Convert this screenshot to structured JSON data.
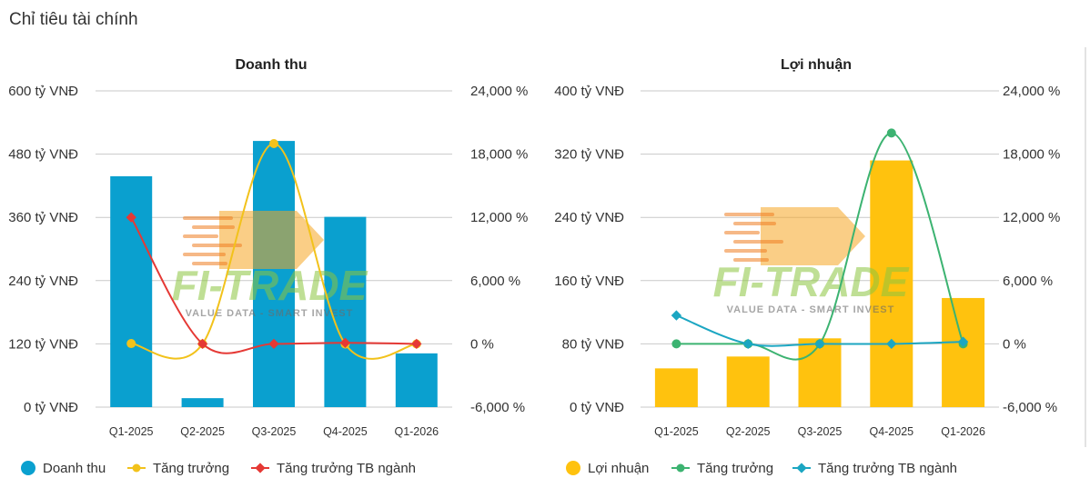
{
  "page": {
    "title": "Chỉ tiêu tài chính"
  },
  "watermark": {
    "text": "FI-TRADE",
    "tagline": "VALUE DATA - SMART INVEST"
  },
  "chart_data": [
    {
      "type": "bar",
      "title": "Doanh thu",
      "categories": [
        "Q1-2025",
        "Q2-2025",
        "Q3-2025",
        "Q4-2025",
        "Q1-2026"
      ],
      "y_left": {
        "ticks": [
          "0 tỷ VNĐ",
          "120 tỷ VNĐ",
          "240 tỷ VNĐ",
          "360 tỷ VNĐ",
          "480 tỷ VNĐ",
          "600 tỷ VNĐ"
        ],
        "min": 0,
        "max": 600
      },
      "y_right": {
        "ticks": [
          "-6,000 %",
          "0 %",
          "6,000 %",
          "12,000 %",
          "18,000 %",
          "24,000 %"
        ],
        "min": -6000,
        "max": 24000
      },
      "grid": true,
      "legend_position": "bottom-left",
      "series": [
        {
          "name": "Doanh thu",
          "kind": "bar",
          "axis": "left",
          "color": "#0aa0cf",
          "values": [
            438,
            17,
            505,
            361,
            102
          ]
        },
        {
          "name": "Tăng trưởng",
          "kind": "line",
          "axis": "right",
          "color": "#f2c21b",
          "values": [
            30,
            0,
            19000,
            -15,
            -10
          ]
        },
        {
          "name": "Tăng trưởng TB ngành",
          "kind": "line",
          "axis": "right",
          "color": "#e53935",
          "values": [
            12000,
            0,
            0,
            100,
            0
          ]
        }
      ]
    },
    {
      "type": "bar",
      "title": "Lợi nhuận",
      "categories": [
        "Q1-2025",
        "Q2-2025",
        "Q3-2025",
        "Q4-2025",
        "Q1-2026"
      ],
      "y_left": {
        "ticks": [
          "0 tỷ VNĐ",
          "80 tỷ VNĐ",
          "160 tỷ VNĐ",
          "240 tỷ VNĐ",
          "320 tỷ VNĐ",
          "400 tỷ VNĐ"
        ],
        "min": 0,
        "max": 400
      },
      "y_right": {
        "ticks": [
          "-6,000 %",
          "0 %",
          "6,000 %",
          "12,000 %",
          "18,000 %",
          "24,000 %"
        ],
        "min": -6000,
        "max": 24000
      },
      "grid": true,
      "legend_position": "bottom-left",
      "series": [
        {
          "name": "Lợi nhuận",
          "kind": "bar",
          "axis": "left",
          "color": "#ffc20e",
          "values": [
            49,
            64,
            87,
            312,
            138
          ]
        },
        {
          "name": "Tăng trưởng",
          "kind": "line",
          "axis": "right",
          "color": "#3cb371",
          "values": [
            0,
            0,
            0,
            20000,
            0
          ]
        },
        {
          "name": "Tăng trưởng TB ngành",
          "kind": "line",
          "axis": "right",
          "color": "#1ba6c2",
          "values": [
            2700,
            0,
            0,
            0,
            200
          ]
        }
      ]
    }
  ]
}
